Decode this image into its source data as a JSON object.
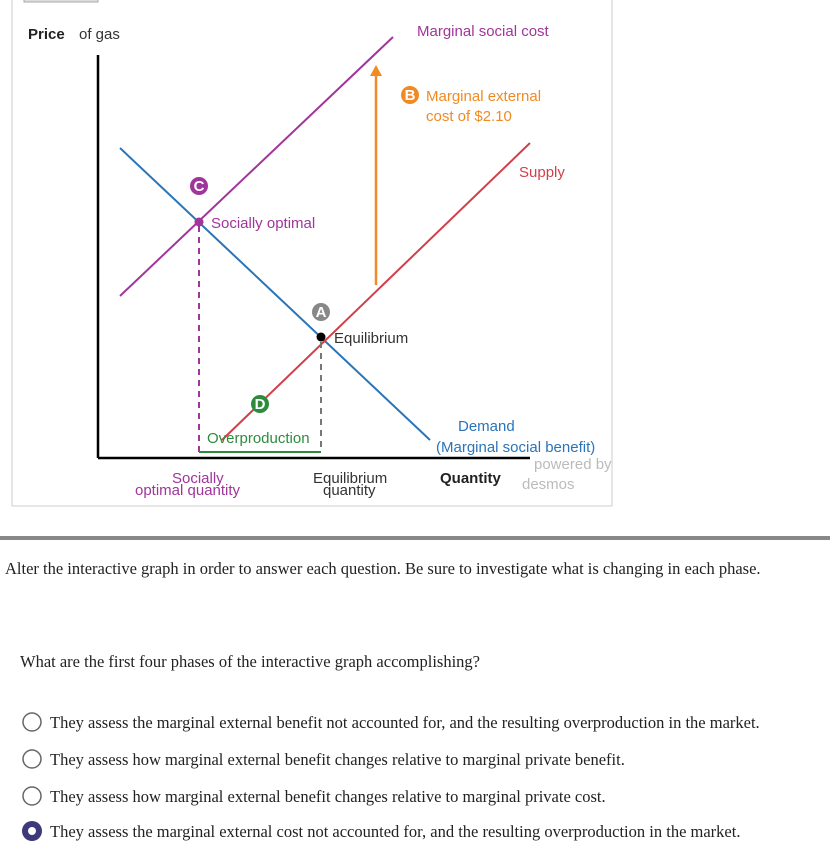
{
  "graph": {
    "y_axis_label": {
      "bold": "Price",
      "rest": "of gas"
    },
    "x_axis_label": "Quantity",
    "lines": {
      "msc": "Marginal social cost",
      "mec": [
        "Marginal external",
        "cost of $2.10"
      ],
      "supply": "Supply",
      "demand": [
        "Demand",
        "(Marginal social benefit)"
      ]
    },
    "points": {
      "c": "C",
      "a": "A",
      "d": "D",
      "b": "B"
    },
    "annotations": {
      "socially_optimal": "Socially optimal",
      "equilibrium": "Equilibrium",
      "overproduction": "Overproduction",
      "x_socially": [
        "Socially",
        "optimal quantity"
      ],
      "x_equilibrium": [
        "Equilibrium",
        "quantity"
      ]
    },
    "branding": {
      "powered": "powered by",
      "name": "desmos"
    }
  },
  "instructions": "Alter the interactive graph in order to answer each question. Be sure to investigate what is changing in each phase.",
  "question": "What are the first four phases of the interactive graph accomplishing?",
  "options": [
    {
      "text": "They assess the marginal external benefit not accounted for, and the resulting overproduction in the market.",
      "selected": false
    },
    {
      "text": "They assess how marginal external benefit changes relative to marginal private benefit.",
      "selected": false
    },
    {
      "text": "They assess how marginal external benefit changes relative to marginal private cost.",
      "selected": false
    },
    {
      "text": "They assess the marginal external cost not accounted for, and the resulting overproduction in the market.",
      "selected": true
    }
  ]
}
